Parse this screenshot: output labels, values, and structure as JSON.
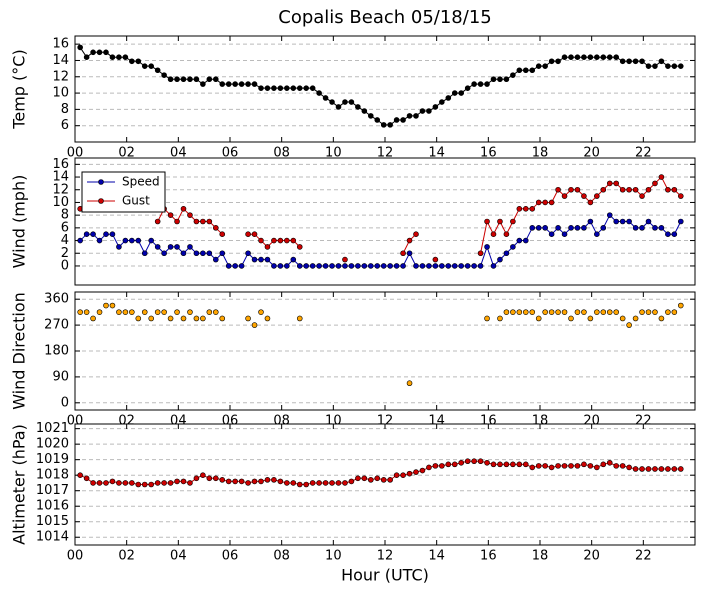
{
  "chart_data": [
    {
      "type": "line",
      "title": "Copalis Beach 05/18/15",
      "ylabel": "Temp (°C)",
      "x": [
        0.2,
        0.45,
        0.7,
        0.95,
        1.2,
        1.45,
        1.7,
        1.95,
        2.2,
        2.45,
        2.7,
        2.95,
        3.2,
        3.45,
        3.7,
        3.95,
        4.2,
        4.45,
        4.7,
        4.95,
        5.2,
        5.45,
        5.7,
        5.95,
        6.2,
        6.45,
        6.7,
        6.95,
        7.2,
        7.45,
        7.7,
        7.95,
        8.2,
        8.45,
        8.7,
        8.95,
        9.2,
        9.45,
        9.7,
        9.95,
        10.2,
        10.45,
        10.7,
        10.95,
        11.2,
        11.45,
        11.7,
        11.95,
        12.2,
        12.45,
        12.7,
        12.95,
        13.2,
        13.45,
        13.7,
        13.95,
        14.2,
        14.45,
        14.7,
        14.95,
        15.2,
        15.45,
        15.7,
        15.95,
        16.2,
        16.45,
        16.7,
        16.95,
        17.2,
        17.45,
        17.7,
        17.95,
        18.2,
        18.45,
        18.7,
        18.95,
        19.2,
        19.45,
        19.7,
        19.95,
        20.2,
        20.45,
        20.7,
        20.95,
        21.2,
        21.45,
        21.7,
        21.95,
        22.2,
        22.45,
        22.7,
        22.95,
        23.2,
        23.45
      ],
      "series": [
        {
          "color": "#000000",
          "values": [
            15.6,
            14.4,
            15.0,
            15.0,
            15.0,
            14.4,
            14.4,
            14.4,
            13.9,
            13.9,
            13.3,
            13.3,
            12.8,
            12.2,
            11.7,
            11.7,
            11.7,
            11.7,
            11.7,
            11.1,
            11.7,
            11.7,
            11.1,
            11.1,
            11.1,
            11.1,
            11.1,
            11.1,
            10.6,
            10.6,
            10.6,
            10.6,
            10.6,
            10.6,
            10.6,
            10.6,
            10.6,
            10.0,
            9.4,
            8.9,
            8.3,
            8.9,
            8.9,
            8.3,
            7.8,
            7.2,
            6.7,
            6.1,
            6.1,
            6.7,
            6.7,
            7.2,
            7.2,
            7.8,
            7.8,
            8.3,
            8.9,
            9.4,
            10.0,
            10.0,
            10.6,
            11.1,
            11.1,
            11.1,
            11.7,
            11.7,
            11.7,
            12.2,
            12.8,
            12.8,
            12.8,
            13.3,
            13.3,
            13.9,
            13.9,
            14.4,
            14.4,
            14.4,
            14.4,
            14.4,
            14.4,
            14.4,
            14.4,
            14.4,
            13.9,
            13.9,
            13.9,
            13.9,
            13.3,
            13.3,
            13.9,
            13.3,
            13.3,
            13.3
          ]
        }
      ],
      "xlim": [
        0,
        24
      ],
      "xticks": [
        {
          "value": 0,
          "label": "00"
        },
        {
          "value": 2,
          "label": "02"
        },
        {
          "value": 4,
          "label": "04"
        },
        {
          "value": 6,
          "label": "06"
        },
        {
          "value": 8,
          "label": "08"
        },
        10,
        12,
        14,
        16,
        18,
        20,
        22
      ],
      "ylim": [
        4,
        17
      ],
      "yticks": [
        6,
        8,
        10,
        12,
        14,
        16
      ],
      "grid": true
    },
    {
      "type": "line",
      "ylabel": "Wind (mph)",
      "legend": "upper left",
      "x": [
        0.2,
        0.45,
        0.7,
        0.95,
        1.2,
        1.45,
        1.7,
        1.95,
        2.2,
        2.45,
        2.7,
        2.95,
        3.2,
        3.45,
        3.7,
        3.95,
        4.2,
        4.45,
        4.7,
        4.95,
        5.2,
        5.45,
        5.7,
        5.95,
        6.2,
        6.45,
        6.7,
        6.95,
        7.2,
        7.45,
        7.7,
        7.95,
        8.2,
        8.45,
        8.7,
        8.95,
        9.2,
        9.45,
        9.7,
        9.95,
        10.2,
        10.45,
        10.7,
        10.95,
        11.2,
        11.45,
        11.7,
        11.95,
        12.2,
        12.45,
        12.7,
        12.95,
        13.2,
        13.45,
        13.7,
        13.95,
        14.2,
        14.45,
        14.7,
        14.95,
        15.2,
        15.45,
        15.7,
        15.95,
        16.2,
        16.45,
        16.7,
        16.95,
        17.2,
        17.45,
        17.7,
        17.95,
        18.2,
        18.45,
        18.7,
        18.95,
        19.2,
        19.45,
        19.7,
        19.95,
        20.2,
        20.45,
        20.7,
        20.95,
        21.2,
        21.45,
        21.7,
        21.95,
        22.2,
        22.45,
        22.7,
        22.95,
        23.2,
        23.45
      ],
      "series": [
        {
          "name": "Speed",
          "color": "#0000aa",
          "values": [
            4,
            5,
            5,
            4,
            5,
            5,
            3,
            4,
            4,
            4,
            2,
            4,
            3,
            2,
            3,
            3,
            2,
            3,
            2,
            2,
            2,
            1,
            2,
            0,
            0,
            0,
            2,
            1,
            1,
            1,
            0,
            0,
            0,
            1,
            0,
            0,
            0,
            0,
            0,
            0,
            0,
            0,
            0,
            0,
            0,
            0,
            0,
            0,
            0,
            0,
            0,
            2,
            0,
            0,
            0,
            0,
            0,
            0,
            0,
            0,
            0,
            0,
            0,
            3,
            0,
            1,
            2,
            3,
            4,
            4,
            6,
            6,
            6,
            5,
            6,
            5,
            6,
            6,
            6,
            7,
            5,
            6,
            8,
            7,
            7,
            7,
            6,
            6,
            7,
            6,
            6,
            5,
            5,
            7
          ]
        },
        {
          "name": "Gust",
          "color": "#cc0000",
          "values": [
            9,
            null,
            null,
            null,
            null,
            null,
            null,
            null,
            null,
            null,
            null,
            null,
            7,
            9,
            8,
            7,
            9,
            8,
            7,
            7,
            7,
            6,
            5,
            null,
            null,
            null,
            5,
            5,
            4,
            3,
            4,
            4,
            4,
            4,
            3,
            null,
            null,
            null,
            null,
            null,
            null,
            1,
            null,
            null,
            null,
            null,
            null,
            null,
            null,
            null,
            2,
            4,
            5,
            null,
            null,
            1,
            null,
            null,
            null,
            null,
            null,
            null,
            2,
            7,
            5,
            7,
            5,
            7,
            9,
            9,
            9,
            10,
            10,
            10,
            12,
            11,
            12,
            12,
            11,
            10,
            11,
            12,
            13,
            13,
            12,
            12,
            12,
            11,
            12,
            13,
            14,
            12,
            12,
            11
          ]
        }
      ],
      "xlim": [
        0,
        24
      ],
      "ylim": [
        -3,
        17
      ],
      "yticks": [
        0,
        2,
        4,
        6,
        8,
        10,
        12,
        14,
        16
      ],
      "grid": true
    },
    {
      "type": "scatter",
      "ylabel": "Wind Direction",
      "x": [
        0.2,
        0.45,
        0.7,
        0.95,
        1.2,
        1.45,
        1.7,
        1.95,
        2.2,
        2.45,
        2.7,
        2.95,
        3.2,
        3.45,
        3.7,
        3.95,
        4.2,
        4.45,
        4.7,
        4.95,
        5.2,
        5.45,
        5.7,
        5.95,
        6.2,
        6.45,
        6.7,
        6.95,
        7.2,
        7.45,
        7.7,
        7.95,
        8.2,
        8.45,
        8.7,
        8.95,
        9.2,
        9.45,
        9.7,
        9.95,
        10.2,
        10.45,
        10.7,
        10.95,
        11.2,
        11.45,
        11.7,
        11.95,
        12.2,
        12.45,
        12.7,
        12.95,
        13.2,
        13.45,
        13.7,
        13.95,
        14.2,
        14.45,
        14.7,
        14.95,
        15.2,
        15.45,
        15.7,
        15.95,
        16.2,
        16.45,
        16.7,
        16.95,
        17.2,
        17.45,
        17.7,
        17.95,
        18.2,
        18.45,
        18.7,
        18.95,
        19.2,
        19.45,
        19.7,
        19.95,
        20.2,
        20.45,
        20.7,
        20.95,
        21.2,
        21.45,
        21.7,
        21.95,
        22.2,
        22.45,
        22.7,
        22.95,
        23.2,
        23.45
      ],
      "series": [
        {
          "color": "#ffa500",
          "values": [
            315,
            315,
            293,
            315,
            338,
            338,
            315,
            315,
            315,
            293,
            315,
            293,
            315,
            315,
            293,
            315,
            293,
            315,
            293,
            293,
            315,
            315,
            293,
            null,
            null,
            null,
            293,
            270,
            315,
            293,
            null,
            null,
            null,
            null,
            293,
            null,
            null,
            null,
            null,
            null,
            null,
            null,
            null,
            null,
            null,
            null,
            null,
            null,
            null,
            null,
            null,
            68,
            null,
            null,
            null,
            null,
            null,
            null,
            null,
            null,
            null,
            null,
            null,
            293,
            null,
            293,
            315,
            315,
            315,
            315,
            315,
            293,
            315,
            315,
            315,
            315,
            293,
            315,
            315,
            293,
            315,
            315,
            315,
            315,
            293,
            270,
            293,
            315,
            315,
            315,
            293,
            315,
            315,
            338
          ]
        }
      ],
      "xlim": [
        0,
        24
      ],
      "xticks": [
        {
          "value": 0,
          "label": "00"
        },
        {
          "value": 2,
          "label": "02"
        },
        {
          "value": 4,
          "label": "04"
        },
        {
          "value": 6,
          "label": "06"
        },
        {
          "value": 8,
          "label": "08"
        },
        10,
        12,
        14,
        16,
        18,
        20,
        22
      ],
      "ylim": [
        -25,
        385
      ],
      "yticks": [
        0,
        90,
        180,
        270,
        360
      ],
      "grid": true
    },
    {
      "type": "line",
      "ylabel": "Altimeter (hPa)",
      "xlabel": "Hour (UTC)",
      "x": [
        0.2,
        0.45,
        0.7,
        0.95,
        1.2,
        1.45,
        1.7,
        1.95,
        2.2,
        2.45,
        2.7,
        2.95,
        3.2,
        3.45,
        3.7,
        3.95,
        4.2,
        4.45,
        4.7,
        4.95,
        5.2,
        5.45,
        5.7,
        5.95,
        6.2,
        6.45,
        6.7,
        6.95,
        7.2,
        7.45,
        7.7,
        7.95,
        8.2,
        8.45,
        8.7,
        8.95,
        9.2,
        9.45,
        9.7,
        9.95,
        10.2,
        10.45,
        10.7,
        10.95,
        11.2,
        11.45,
        11.7,
        11.95,
        12.2,
        12.45,
        12.7,
        12.95,
        13.2,
        13.45,
        13.7,
        13.95,
        14.2,
        14.45,
        14.7,
        14.95,
        15.2,
        15.45,
        15.7,
        15.95,
        16.2,
        16.45,
        16.7,
        16.95,
        17.2,
        17.45,
        17.7,
        17.95,
        18.2,
        18.45,
        18.7,
        18.95,
        19.2,
        19.45,
        19.7,
        19.95,
        20.2,
        20.45,
        20.7,
        20.95,
        21.2,
        21.45,
        21.7,
        21.95,
        22.2,
        22.45,
        22.7,
        22.95,
        23.2,
        23.45
      ],
      "series": [
        {
          "color": "#cc0000",
          "values": [
            1018.0,
            1017.8,
            1017.5,
            1017.5,
            1017.5,
            1017.6,
            1017.5,
            1017.5,
            1017.5,
            1017.4,
            1017.4,
            1017.4,
            1017.5,
            1017.5,
            1017.5,
            1017.6,
            1017.6,
            1017.5,
            1017.8,
            1018.0,
            1017.8,
            1017.8,
            1017.7,
            1017.6,
            1017.6,
            1017.6,
            1017.5,
            1017.6,
            1017.6,
            1017.7,
            1017.7,
            1017.6,
            1017.5,
            1017.5,
            1017.4,
            1017.4,
            1017.5,
            1017.5,
            1017.5,
            1017.5,
            1017.5,
            1017.5,
            1017.6,
            1017.8,
            1017.8,
            1017.7,
            1017.8,
            1017.7,
            1017.7,
            1018.0,
            1018.0,
            1018.1,
            1018.2,
            1018.3,
            1018.5,
            1018.6,
            1018.6,
            1018.7,
            1018.7,
            1018.8,
            1018.9,
            1018.9,
            1018.9,
            1018.8,
            1018.7,
            1018.7,
            1018.7,
            1018.7,
            1018.7,
            1018.7,
            1018.5,
            1018.6,
            1018.6,
            1018.5,
            1018.6,
            1018.6,
            1018.6,
            1018.6,
            1018.7,
            1018.6,
            1018.5,
            1018.7,
            1018.8,
            1018.6,
            1018.6,
            1018.5,
            1018.4,
            1018.4,
            1018.4,
            1018.4,
            1018.4,
            1018.4,
            1018.4,
            1018.4
          ]
        }
      ],
      "xlim": [
        0,
        24
      ],
      "xticks": [
        {
          "value": 0,
          "label": "00"
        },
        {
          "value": 2,
          "label": "02"
        },
        {
          "value": 4,
          "label": "04"
        },
        {
          "value": 6,
          "label": "06"
        },
        {
          "value": 8,
          "label": "08"
        },
        10,
        12,
        14,
        16,
        18,
        20,
        22
      ],
      "ylim": [
        1013.5,
        1021.3
      ],
      "yticks": [
        1014,
        1015,
        1016,
        1017,
        1018,
        1019,
        1020,
        1021
      ],
      "grid": true
    }
  ]
}
